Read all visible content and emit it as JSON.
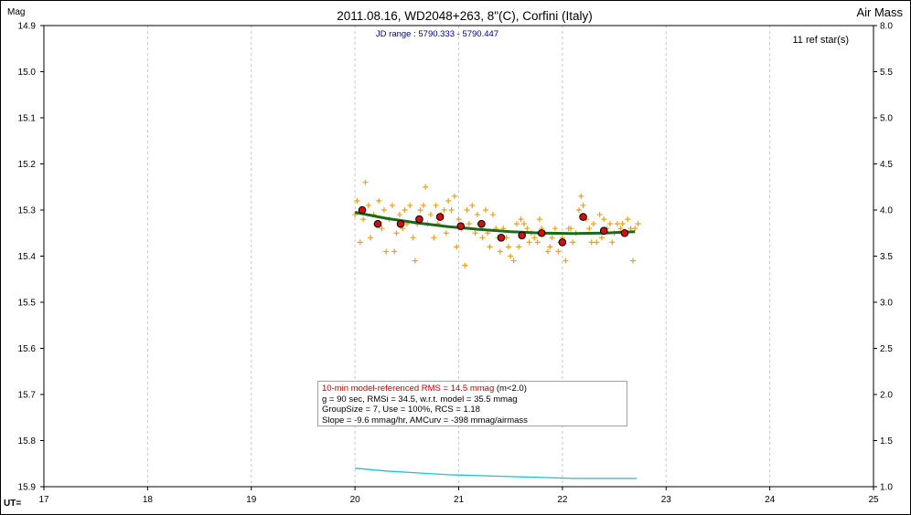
{
  "chart_data": {
    "type": "scatter",
    "title": "2011.08.16, WD2048+263, 8\"(C), Corfini (Italy)",
    "subtitle": "JD range : 5790.333 - 5790.447",
    "ref_stars": "11 ref star(s)",
    "ylabel_left": "Mag",
    "ylabel_right": "Air Mass",
    "xlabel": "UT=",
    "xlim": [
      17,
      25
    ],
    "ylim_left": [
      14.9,
      15.9
    ],
    "ylim_right": [
      8.0,
      1.0
    ],
    "y_inverted": true,
    "x_ticks": [
      "17",
      "18",
      "19",
      "20",
      "21",
      "22",
      "23",
      "24",
      "25"
    ],
    "y_ticks_left": [
      "14.9",
      "15.0",
      "15.1",
      "15.2",
      "15.3",
      "15.4",
      "15.5",
      "15.6",
      "15.7",
      "15.8",
      "15.9"
    ],
    "y_ticks_right": [
      "8.0",
      "5.5",
      "5.0",
      "4.5",
      "4.0",
      "3.5",
      "3.0",
      "2.5",
      "2.0",
      "1.5",
      "1.0"
    ],
    "grid": "vertical dashed",
    "colors": {
      "points": "#e8a020",
      "averages": "#d01010",
      "model": "#1a6a1a",
      "airmass": "#20c0d0",
      "title": "#000000",
      "subtitle": "#00008b",
      "rms": "#c00000"
    },
    "series": [
      {
        "name": "individual",
        "marker": "plus",
        "points": [
          [
            20.0,
            15.31
          ],
          [
            20.02,
            15.28
          ],
          [
            20.05,
            15.37
          ],
          [
            20.08,
            15.32
          ],
          [
            20.1,
            15.24
          ],
          [
            20.13,
            15.29
          ],
          [
            20.15,
            15.36
          ],
          [
            20.18,
            15.31
          ],
          [
            20.2,
            15.33
          ],
          [
            20.23,
            15.28
          ],
          [
            20.26,
            15.34
          ],
          [
            20.28,
            15.3
          ],
          [
            20.3,
            15.39
          ],
          [
            20.33,
            15.32
          ],
          [
            20.36,
            15.29
          ],
          [
            20.38,
            15.39
          ],
          [
            20.4,
            15.35
          ],
          [
            20.43,
            15.31
          ],
          [
            20.46,
            15.34
          ],
          [
            20.48,
            15.3
          ],
          [
            20.5,
            15.33
          ],
          [
            20.53,
            15.29
          ],
          [
            20.56,
            15.36
          ],
          [
            20.58,
            15.41
          ],
          [
            20.6,
            15.33
          ],
          [
            20.63,
            15.3
          ],
          [
            20.66,
            15.29
          ],
          [
            20.68,
            15.25
          ],
          [
            20.7,
            15.33
          ],
          [
            20.73,
            15.31
          ],
          [
            20.76,
            15.36
          ],
          [
            20.78,
            15.29
          ],
          [
            20.8,
            15.33
          ],
          [
            20.83,
            15.31
          ],
          [
            20.86,
            15.3
          ],
          [
            20.88,
            15.35
          ],
          [
            20.9,
            15.28
          ],
          [
            20.93,
            15.3
          ],
          [
            20.96,
            15.27
          ],
          [
            20.98,
            15.38
          ],
          [
            21.0,
            15.32
          ],
          [
            21.03,
            15.34
          ],
          [
            21.06,
            15.42
          ],
          [
            21.08,
            15.3
          ],
          [
            21.1,
            15.33
          ],
          [
            21.13,
            15.29
          ],
          [
            21.16,
            15.35
          ],
          [
            21.18,
            15.31
          ],
          [
            21.2,
            15.33
          ],
          [
            21.23,
            15.36
          ],
          [
            21.26,
            15.3
          ],
          [
            21.28,
            15.35
          ],
          [
            21.3,
            15.38
          ],
          [
            21.33,
            15.31
          ],
          [
            21.36,
            15.34
          ],
          [
            21.38,
            15.36
          ],
          [
            21.4,
            15.39
          ],
          [
            21.43,
            15.34
          ],
          [
            21.46,
            15.36
          ],
          [
            21.48,
            15.38
          ],
          [
            21.5,
            15.4
          ],
          [
            21.53,
            15.41
          ],
          [
            21.56,
            15.33
          ],
          [
            21.58,
            15.38
          ],
          [
            21.6,
            15.32
          ],
          [
            21.63,
            15.33
          ],
          [
            21.66,
            15.34
          ],
          [
            21.68,
            15.37
          ],
          [
            21.7,
            15.35
          ],
          [
            21.73,
            15.36
          ],
          [
            21.76,
            15.37
          ],
          [
            21.78,
            15.32
          ],
          [
            21.8,
            15.34
          ],
          [
            21.83,
            15.35
          ],
          [
            21.86,
            15.39
          ],
          [
            21.88,
            15.38
          ],
          [
            21.9,
            15.36
          ],
          [
            21.93,
            15.34
          ],
          [
            21.96,
            15.39
          ],
          [
            21.98,
            15.37
          ],
          [
            22.0,
            15.36
          ],
          [
            22.03,
            15.41
          ],
          [
            22.06,
            15.34
          ],
          [
            22.08,
            15.34
          ],
          [
            22.1,
            15.37
          ],
          [
            22.13,
            15.35
          ],
          [
            22.16,
            15.3
          ],
          [
            22.18,
            15.27
          ],
          [
            22.2,
            15.29
          ],
          [
            22.23,
            15.32
          ],
          [
            22.26,
            15.34
          ],
          [
            22.28,
            15.37
          ],
          [
            22.3,
            15.33
          ],
          [
            22.33,
            15.37
          ],
          [
            22.36,
            15.31
          ],
          [
            22.38,
            15.36
          ],
          [
            22.4,
            15.32
          ],
          [
            22.43,
            15.34
          ],
          [
            22.46,
            15.33
          ],
          [
            22.48,
            15.37
          ],
          [
            22.5,
            15.35
          ],
          [
            22.53,
            15.33
          ],
          [
            22.56,
            15.34
          ],
          [
            22.58,
            15.33
          ],
          [
            22.6,
            15.35
          ],
          [
            22.63,
            15.32
          ],
          [
            22.66,
            15.34
          ],
          [
            22.68,
            15.41
          ],
          [
            22.7,
            15.34
          ],
          [
            22.73,
            15.33
          ]
        ]
      },
      {
        "name": "group averages",
        "marker": "circle",
        "points": [
          [
            20.07,
            15.3
          ],
          [
            20.22,
            15.33
          ],
          [
            20.44,
            15.33
          ],
          [
            20.62,
            15.32
          ],
          [
            20.82,
            15.315
          ],
          [
            21.02,
            15.335
          ],
          [
            21.22,
            15.33
          ],
          [
            21.41,
            15.36
          ],
          [
            21.61,
            15.355
          ],
          [
            21.8,
            15.35
          ],
          [
            22.0,
            15.37
          ],
          [
            22.2,
            15.315
          ],
          [
            22.4,
            15.345
          ],
          [
            22.6,
            15.35
          ]
        ]
      },
      {
        "name": "model",
        "marker": "line",
        "points": [
          [
            20.0,
            15.305
          ],
          [
            20.3,
            15.318
          ],
          [
            20.6,
            15.328
          ],
          [
            20.9,
            15.336
          ],
          [
            21.2,
            15.342
          ],
          [
            21.5,
            15.347
          ],
          [
            21.8,
            15.35
          ],
          [
            22.1,
            15.351
          ],
          [
            22.4,
            15.35
          ],
          [
            22.7,
            15.347
          ]
        ]
      },
      {
        "name": "air mass",
        "marker": "line",
        "axis": "right",
        "points": [
          [
            20.0,
            1.2
          ],
          [
            20.3,
            1.17
          ],
          [
            20.6,
            1.15
          ],
          [
            20.9,
            1.13
          ],
          [
            21.2,
            1.12
          ],
          [
            21.5,
            1.11
          ],
          [
            21.8,
            1.1
          ],
          [
            22.1,
            1.09
          ],
          [
            22.4,
            1.09
          ],
          [
            22.72,
            1.09
          ]
        ]
      }
    ],
    "stats": {
      "line1_red": "10-min model-referenced RMS = 14.5 mmag",
      "line1_black": " (m<2.0)",
      "line2": "g = 90 sec, RMSi = 34.5, w.r.t. model = 35.5 mmag",
      "line3": "GroupSize = 7, Use = 100%, RCS = 1.18",
      "line4": "Slope = -9.6 mmag/hr, AMCurv = -398 mmag/airmass"
    }
  }
}
